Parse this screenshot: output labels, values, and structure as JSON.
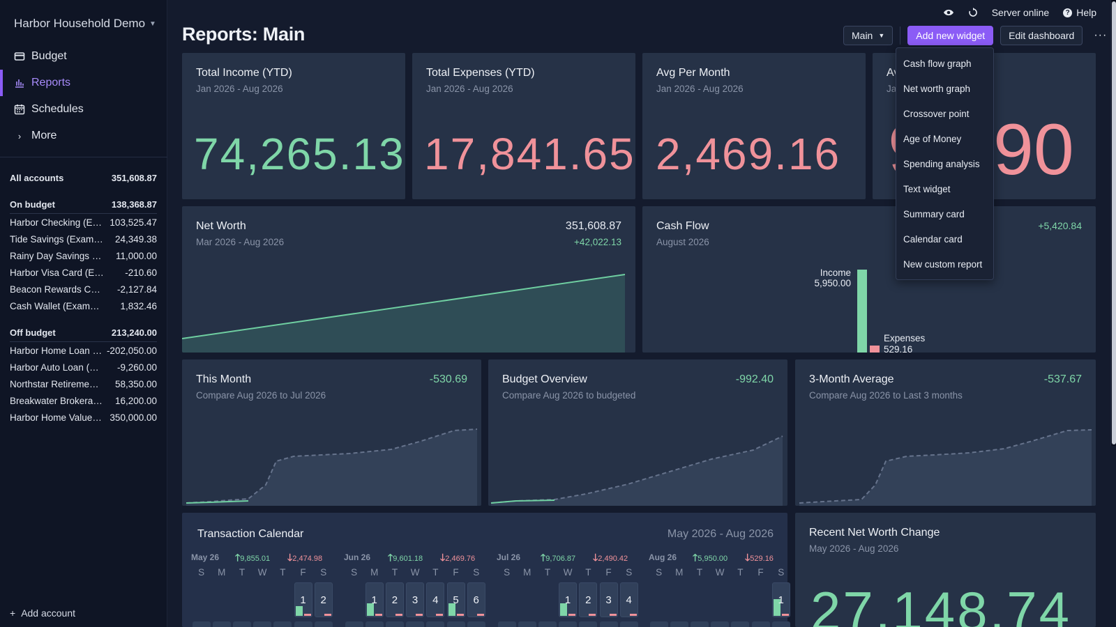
{
  "sidebar": {
    "budget_name": "Harbor Household Demo",
    "nav": [
      {
        "label": "Budget",
        "icon": "wallet-icon"
      },
      {
        "label": "Reports",
        "icon": "bar-chart-icon",
        "active": true
      },
      {
        "label": "Schedules",
        "icon": "calendar-icon"
      },
      {
        "label": "More",
        "icon": "chevron-right-icon"
      }
    ],
    "all_accounts": {
      "label": "All accounts",
      "value": "351,608.87"
    },
    "on_budget": {
      "label": "On budget",
      "value": "138,368.87"
    },
    "on_budget_accounts": [
      {
        "name": "Harbor Checking (Example)",
        "value": "103,525.47"
      },
      {
        "name": "Tide Savings (Example)",
        "value": "24,349.38"
      },
      {
        "name": "Rainy Day Savings (Example)",
        "value": "11,000.00"
      },
      {
        "name": "Harbor Visa Card (Example)",
        "value": "-210.60"
      },
      {
        "name": "Beacon Rewards Card (Example)",
        "value": "-2,127.84"
      },
      {
        "name": "Cash Wallet (Example)",
        "value": "1,832.46"
      }
    ],
    "off_budget": {
      "label": "Off budget",
      "value": "213,240.00"
    },
    "off_budget_accounts": [
      {
        "name": "Harbor Home Loan (Example)",
        "value": "-202,050.00"
      },
      {
        "name": "Harbor Auto Loan (Example)",
        "value": "-9,260.00"
      },
      {
        "name": "Northstar Retirement (Example)",
        "value": "58,350.00"
      },
      {
        "name": "Breakwater Brokerage (Example)",
        "value": "16,200.00"
      },
      {
        "name": "Harbor Home Value (Example)",
        "value": "350,000.00"
      }
    ],
    "add_account": "Add account"
  },
  "topbar": {
    "server_status": "Server online",
    "help": "Help"
  },
  "page": {
    "title": "Reports: Main"
  },
  "toolbar": {
    "dashboard_select": "Main",
    "add_widget": "Add new widget",
    "edit_dashboard": "Edit dashboard"
  },
  "menu": {
    "items": [
      "Cash flow graph",
      "Net worth graph",
      "Crossover point",
      "Age of Money",
      "Spending analysis",
      "Text widget",
      "Summary card",
      "Calendar card",
      "New custom report"
    ]
  },
  "cards": {
    "total_income": {
      "title": "Total Income (YTD)",
      "subtitle": "Jan 2026 - Aug 2026",
      "value": "74,265.13"
    },
    "total_expenses": {
      "title": "Total Expenses (YTD)",
      "subtitle": "Jan 2026 - Aug 2026",
      "value": "17,841.65"
    },
    "avg_per_month": {
      "title": "Avg Per Month",
      "subtitle": "Jan 2026 - Aug 2026",
      "value": "2,469.16"
    },
    "fourth": {
      "title_visible": "Av",
      "subtitle_visible": "Ja",
      "value_left": "9",
      "value_right": "90"
    },
    "net_worth": {
      "title": "Net Worth",
      "subtitle": "Mar 2026 - Aug 2026",
      "value": "351,608.87",
      "change": "+42,022.13"
    },
    "cash_flow": {
      "title": "Cash Flow",
      "subtitle": "August 2026",
      "change": "+5,420.84",
      "income_label": "Income",
      "income_value": "5,950.00",
      "expenses_label": "Expenses",
      "expenses_value": "529.16"
    },
    "this_month": {
      "title": "This Month",
      "subtitle": "Compare Aug 2026 to Jul 2026",
      "value": "-530.69"
    },
    "budget_overview": {
      "title": "Budget Overview",
      "subtitle": "Compare Aug 2026 to budgeted",
      "value": "-992.40"
    },
    "three_month": {
      "title": "3-Month Average",
      "subtitle": "Compare Aug 2026 to Last 3 months",
      "value": "-537.67"
    },
    "calendar": {
      "title": "Transaction Calendar",
      "range": "May 2026 - Aug 2026"
    },
    "recent_nw": {
      "title": "Recent Net Worth Change",
      "subtitle": "May 2026 - Aug 2026",
      "value": "27,148.74"
    }
  },
  "calendar": {
    "dow": [
      "S",
      "M",
      "T",
      "W",
      "T",
      "F",
      "S"
    ],
    "months": [
      {
        "name": "May 26",
        "income": "9,855.01",
        "expenses": "2,474.98",
        "days": [
          "1",
          "2"
        ]
      },
      {
        "name": "Jun 26",
        "income": "9,601.18",
        "expenses": "2,469.76",
        "days": [
          "1",
          "2",
          "3",
          "4",
          "5",
          "6"
        ]
      },
      {
        "name": "Jul 26",
        "income": "9,706.87",
        "expenses": "2,490.42",
        "days": [
          "1",
          "2",
          "3",
          "4"
        ]
      },
      {
        "name": "Aug 26",
        "income": "5,950.00",
        "expenses": "529.16",
        "days": [
          "1"
        ]
      }
    ]
  },
  "colors": {
    "accent": "#8b5cf6",
    "income": "#7fd6a8",
    "expense": "#f0929a",
    "card_bg": "#263247"
  }
}
